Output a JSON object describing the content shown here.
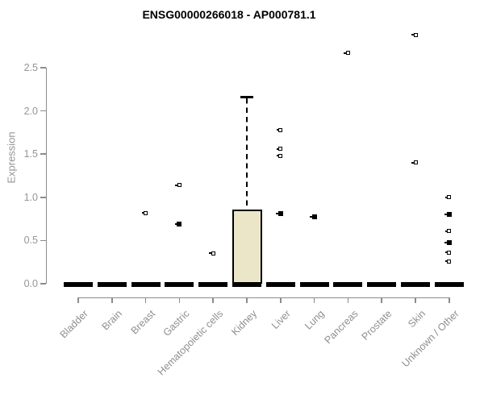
{
  "chart_data": {
    "type": "boxplot",
    "title": "ENSG00000266018 - AP000781.1",
    "ylabel": "Expression",
    "xlabel": "",
    "ylim": [
      0,
      2.5
    ],
    "ytick_labels": [
      "0.0",
      "0.5",
      "1.0",
      "1.5",
      "2.0",
      "2.5"
    ],
    "ytick_values": [
      0,
      0.5,
      1.0,
      1.5,
      2.0,
      2.5
    ],
    "grid": false,
    "legend": "none",
    "colors": {
      "box_fill": "#ece6c8",
      "box_border": "#000000",
      "median": "#000000",
      "axis": "#8c8c8c",
      "tick_label": "#959595",
      "title": "#000000"
    },
    "categories": [
      "Bladder",
      "Brain",
      "Breast",
      "Gastric",
      "Hematopoietic cells",
      "Kidney",
      "Liver",
      "Lung",
      "Pancreas",
      "Prostate",
      "Skin",
      "Unknown / Other"
    ],
    "boxes": [
      {
        "category": "Bladder",
        "q1": 0,
        "median": 0,
        "q3": 0,
        "whisker_low": 0,
        "whisker_high": 0,
        "outliers": []
      },
      {
        "category": "Brain",
        "q1": 0,
        "median": 0,
        "q3": 0,
        "whisker_low": 0,
        "whisker_high": 0,
        "outliers": []
      },
      {
        "category": "Breast",
        "q1": 0,
        "median": 0,
        "q3": 0,
        "whisker_low": 0,
        "whisker_high": 0,
        "outliers": [
          {
            "value": 0.82,
            "style": "open"
          }
        ]
      },
      {
        "category": "Gastric",
        "q1": 0,
        "median": 0,
        "q3": 0,
        "whisker_low": 0,
        "whisker_high": 0,
        "outliers": [
          {
            "value": 1.14,
            "style": "open"
          },
          {
            "value": 0.69,
            "style": "filled"
          }
        ]
      },
      {
        "category": "Hematopoietic cells",
        "q1": 0,
        "median": 0,
        "q3": 0,
        "whisker_low": 0,
        "whisker_high": 0,
        "outliers": [
          {
            "value": 0.35,
            "style": "open"
          }
        ]
      },
      {
        "category": "Kidney",
        "q1": 0,
        "median": 0,
        "q3": 0.86,
        "whisker_low": 0,
        "whisker_high": 2.16,
        "outliers": []
      },
      {
        "category": "Liver",
        "q1": 0,
        "median": 0,
        "q3": 0,
        "whisker_low": 0,
        "whisker_high": 0,
        "outliers": [
          {
            "value": 1.78,
            "style": "open"
          },
          {
            "value": 1.56,
            "style": "open"
          },
          {
            "value": 1.48,
            "style": "open"
          },
          {
            "value": 0.81,
            "style": "filled"
          }
        ]
      },
      {
        "category": "Lung",
        "q1": 0,
        "median": 0,
        "q3": 0,
        "whisker_low": 0,
        "whisker_high": 0,
        "outliers": [
          {
            "value": 0.77,
            "style": "filled"
          }
        ]
      },
      {
        "category": "Pancreas",
        "q1": 0,
        "median": 0,
        "q3": 0,
        "whisker_low": 0,
        "whisker_high": 0,
        "outliers": [
          {
            "value": 2.67,
            "style": "open"
          }
        ]
      },
      {
        "category": "Prostate",
        "q1": 0,
        "median": 0,
        "q3": 0,
        "whisker_low": 0,
        "whisker_high": 0,
        "outliers": []
      },
      {
        "category": "Skin",
        "q1": 0,
        "median": 0,
        "q3": 0,
        "whisker_low": 0,
        "whisker_high": 0,
        "outliers": [
          {
            "value": 2.88,
            "style": "open"
          },
          {
            "value": 1.4,
            "style": "open"
          }
        ]
      },
      {
        "category": "Unknown / Other",
        "q1": 0,
        "median": 0,
        "q3": 0,
        "whisker_low": 0,
        "whisker_high": 0,
        "outliers": [
          {
            "value": 1.0,
            "style": "open"
          },
          {
            "value": 0.8,
            "style": "filled"
          },
          {
            "value": 0.61,
            "style": "open"
          },
          {
            "value": 0.48,
            "style": "filled"
          },
          {
            "value": 0.36,
            "style": "open"
          },
          {
            "value": 0.26,
            "style": "open"
          }
        ]
      }
    ]
  }
}
